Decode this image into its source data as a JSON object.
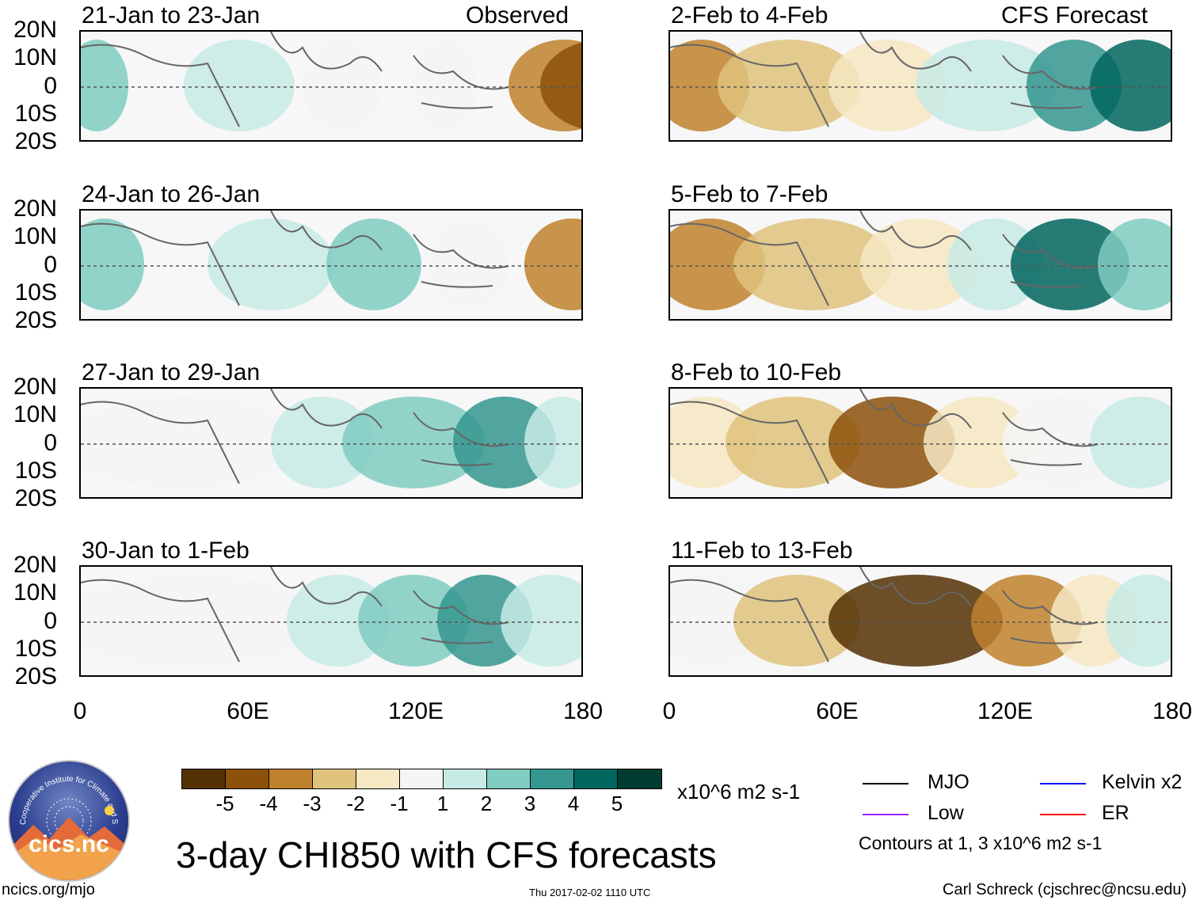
{
  "panels_left": [
    {
      "title": "21-Jan to 23-Jan",
      "tag": "Observed"
    },
    {
      "title": "24-Jan to 26-Jan",
      "tag": ""
    },
    {
      "title": "27-Jan to 29-Jan",
      "tag": ""
    },
    {
      "title": "30-Jan to 1-Feb",
      "tag": ""
    }
  ],
  "panels_right": [
    {
      "title": "2-Feb to 4-Feb",
      "tag": "CFS Forecast"
    },
    {
      "title": "5-Feb to 7-Feb",
      "tag": ""
    },
    {
      "title": "8-Feb to 10-Feb",
      "tag": ""
    },
    {
      "title": "11-Feb to 13-Feb",
      "tag": ""
    }
  ],
  "lat_labels": [
    "20N",
    "10N",
    "0",
    "10S",
    "20S"
  ],
  "lon_labels": [
    "0",
    "60E",
    "120E",
    "180"
  ],
  "colorbar": {
    "colors": [
      "#543005",
      "#8c510a",
      "#bf812d",
      "#dfc27d",
      "#f6e8c3",
      "#f5f5f5",
      "#c7eae5",
      "#80cdc1",
      "#35978f",
      "#01665e",
      "#003c30"
    ],
    "labels": [
      "-5",
      "-4",
      "-3",
      "-2",
      "-1",
      "1",
      "2",
      "3",
      "4",
      "5"
    ],
    "units": "x10^6 m2 s-1"
  },
  "legend": {
    "items": [
      {
        "label": "MJO",
        "color": "#000000"
      },
      {
        "label": "Kelvin x2",
        "color": "#0000ff"
      },
      {
        "label": "Low",
        "color": "#a020f0"
      },
      {
        "label": "ER",
        "color": "#ff0000"
      }
    ],
    "note": "Contours at 1, 3 x10^6 m2 s-1"
  },
  "logo_text": "cics.nc",
  "logo_ring": "Cooperative Institute for Climate and Satellites",
  "main_title": "3-day CHI850 with CFS forecasts",
  "footer": {
    "left": "ncics.org/mjo",
    "center": "Thu 2017-02-02 1110 UTC",
    "right": "Carl Schreck (cjschrec@ncsu.edu)"
  }
}
